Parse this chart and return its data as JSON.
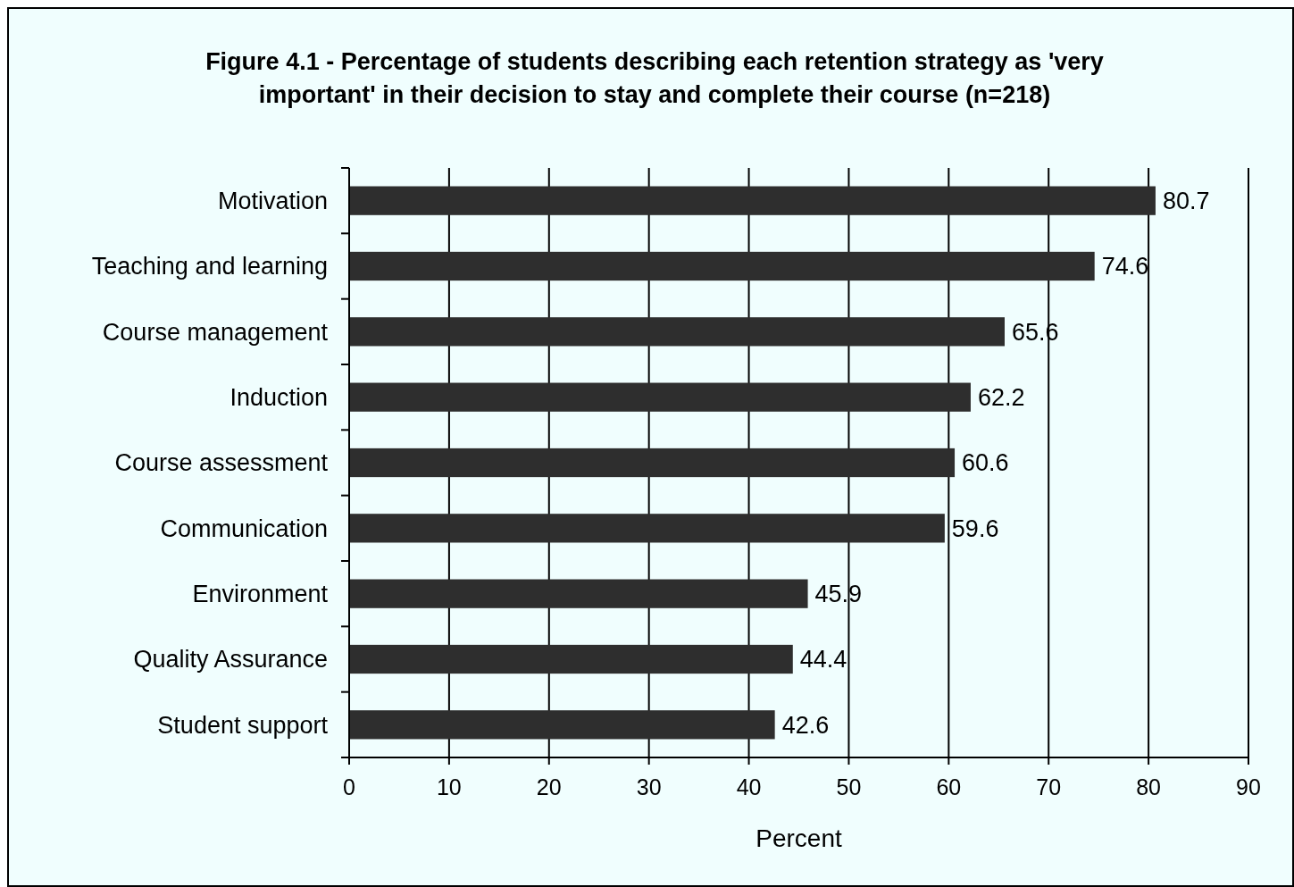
{
  "chart_data": {
    "type": "bar",
    "orientation": "horizontal",
    "title": "Figure 4.1 - Percentage of students describing each retention strategy as 'very important' in their decision to stay and complete their course (n=218)",
    "categories": [
      "Motivation",
      "Teaching and learning",
      "Course management",
      "Induction",
      "Course assessment",
      "Communication",
      "Environment",
      "Quality Assurance",
      "Student support"
    ],
    "values": [
      80.7,
      74.6,
      65.6,
      62.2,
      60.6,
      59.6,
      45.9,
      44.4,
      42.6
    ],
    "color": "#2e2e2e",
    "xlabel": "Percent",
    "xlim": [
      0,
      90
    ],
    "xticks": [
      0,
      10,
      20,
      30,
      40,
      50,
      60,
      70,
      80,
      90
    ],
    "grid": "x",
    "data_labels": true
  }
}
